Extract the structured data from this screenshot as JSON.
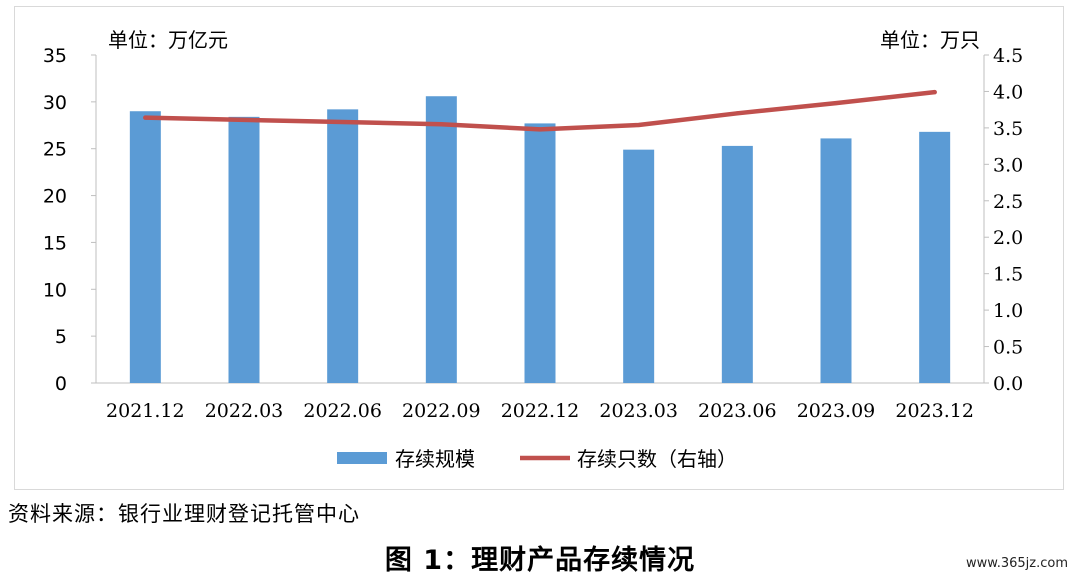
{
  "chart_data": {
    "type": "bar",
    "categories": [
      "2021.12",
      "2022.03",
      "2022.06",
      "2022.09",
      "2022.12",
      "2023.03",
      "2023.06",
      "2023.09",
      "2023.12"
    ],
    "series": [
      {
        "name": "存续规模",
        "type": "bar",
        "axis": "left",
        "color": "#5b9bd5",
        "values": [
          29.0,
          28.4,
          29.2,
          30.6,
          27.7,
          24.9,
          25.3,
          26.1,
          26.8
        ]
      },
      {
        "name": "存续只数（右轴）",
        "type": "line",
        "axis": "right",
        "color": "#c0504d",
        "values": [
          3.64,
          3.61,
          3.58,
          3.55,
          3.48,
          3.54,
          3.7,
          3.84,
          3.99
        ]
      }
    ],
    "left_axis": {
      "unit_label": "单位：万亿元",
      "ylim": [
        0,
        35
      ],
      "ticks": [
        "0",
        "5",
        "10",
        "15",
        "20",
        "25",
        "30",
        "35"
      ]
    },
    "right_axis": {
      "unit_label": "单位：万只",
      "ylim": [
        0,
        4.5
      ],
      "ticks": [
        "0.0",
        "0.5",
        "1.0",
        "1.5",
        "2.0",
        "2.5",
        "3.0",
        "3.5",
        "4.0",
        "4.5"
      ]
    },
    "grid": false,
    "legend_position": "bottom"
  },
  "source_text": "资料来源：银行业理财登记托管中心",
  "figure_title": "图 1：理财产品存续情况",
  "watermark": "www.365jz.com"
}
